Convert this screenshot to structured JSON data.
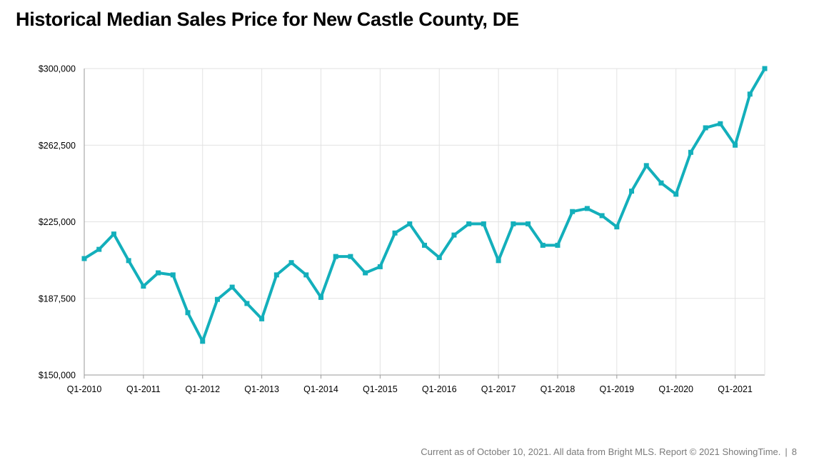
{
  "title": "Historical Median Sales Price for New Castle County, DE",
  "footer": {
    "note": "Current as of October 10, 2021. All data from Bright MLS. Report © 2021 ShowingTime.",
    "separator": "|",
    "page_number": "8"
  },
  "colors": {
    "line": "#13afbb",
    "grid": "#e2e2e2",
    "axis": "#9a9a9a"
  },
  "chart_data": {
    "type": "line",
    "title": "Historical Median Sales Price for New Castle County, DE",
    "xlabel": "",
    "ylabel": "",
    "ylim": [
      150000,
      300000
    ],
    "yticks": [
      150000,
      187500,
      225000,
      262500,
      300000
    ],
    "ytick_labels": [
      "$150,000",
      "$187,500",
      "$225,000",
      "$262,500",
      "$300,000"
    ],
    "xtick_labels": [
      "Q1-2010",
      "Q1-2011",
      "Q1-2012",
      "Q1-2013",
      "Q1-2014",
      "Q1-2015",
      "Q1-2016",
      "Q1-2017",
      "Q1-2018",
      "Q1-2019",
      "Q1-2020",
      "Q1-2021"
    ],
    "grid": true,
    "legend": "none",
    "x": [
      "Q1-2010",
      "Q2-2010",
      "Q3-2010",
      "Q4-2010",
      "Q1-2011",
      "Q2-2011",
      "Q3-2011",
      "Q4-2011",
      "Q1-2012",
      "Q2-2012",
      "Q3-2012",
      "Q4-2012",
      "Q1-2013",
      "Q2-2013",
      "Q3-2013",
      "Q4-2013",
      "Q1-2014",
      "Q2-2014",
      "Q3-2014",
      "Q4-2014",
      "Q1-2015",
      "Q2-2015",
      "Q3-2015",
      "Q4-2015",
      "Q1-2016",
      "Q2-2016",
      "Q3-2016",
      "Q4-2016",
      "Q1-2017",
      "Q2-2017",
      "Q3-2017",
      "Q4-2017",
      "Q1-2018",
      "Q2-2018",
      "Q3-2018",
      "Q4-2018",
      "Q1-2019",
      "Q2-2019",
      "Q3-2019",
      "Q4-2019",
      "Q1-2020",
      "Q2-2020",
      "Q3-2020",
      "Q4-2020",
      "Q1-2021",
      "Q2-2021",
      "Q3-2021"
    ],
    "series": [
      {
        "values": [
          207000,
          211500,
          219000,
          206000,
          193500,
          200000,
          199000,
          180500,
          166500,
          187000,
          193000,
          185000,
          177500,
          199000,
          205000,
          199000,
          188000,
          208000,
          208000,
          200000,
          203000,
          219500,
          224000,
          213500,
          207500,
          218500,
          224000,
          224000,
          206000,
          224000,
          224000,
          213500,
          213500,
          230000,
          231500,
          228000,
          222500,
          240000,
          252500,
          244000,
          238500,
          259000,
          271000,
          273000,
          262500,
          287500,
          300000
        ]
      }
    ]
  }
}
